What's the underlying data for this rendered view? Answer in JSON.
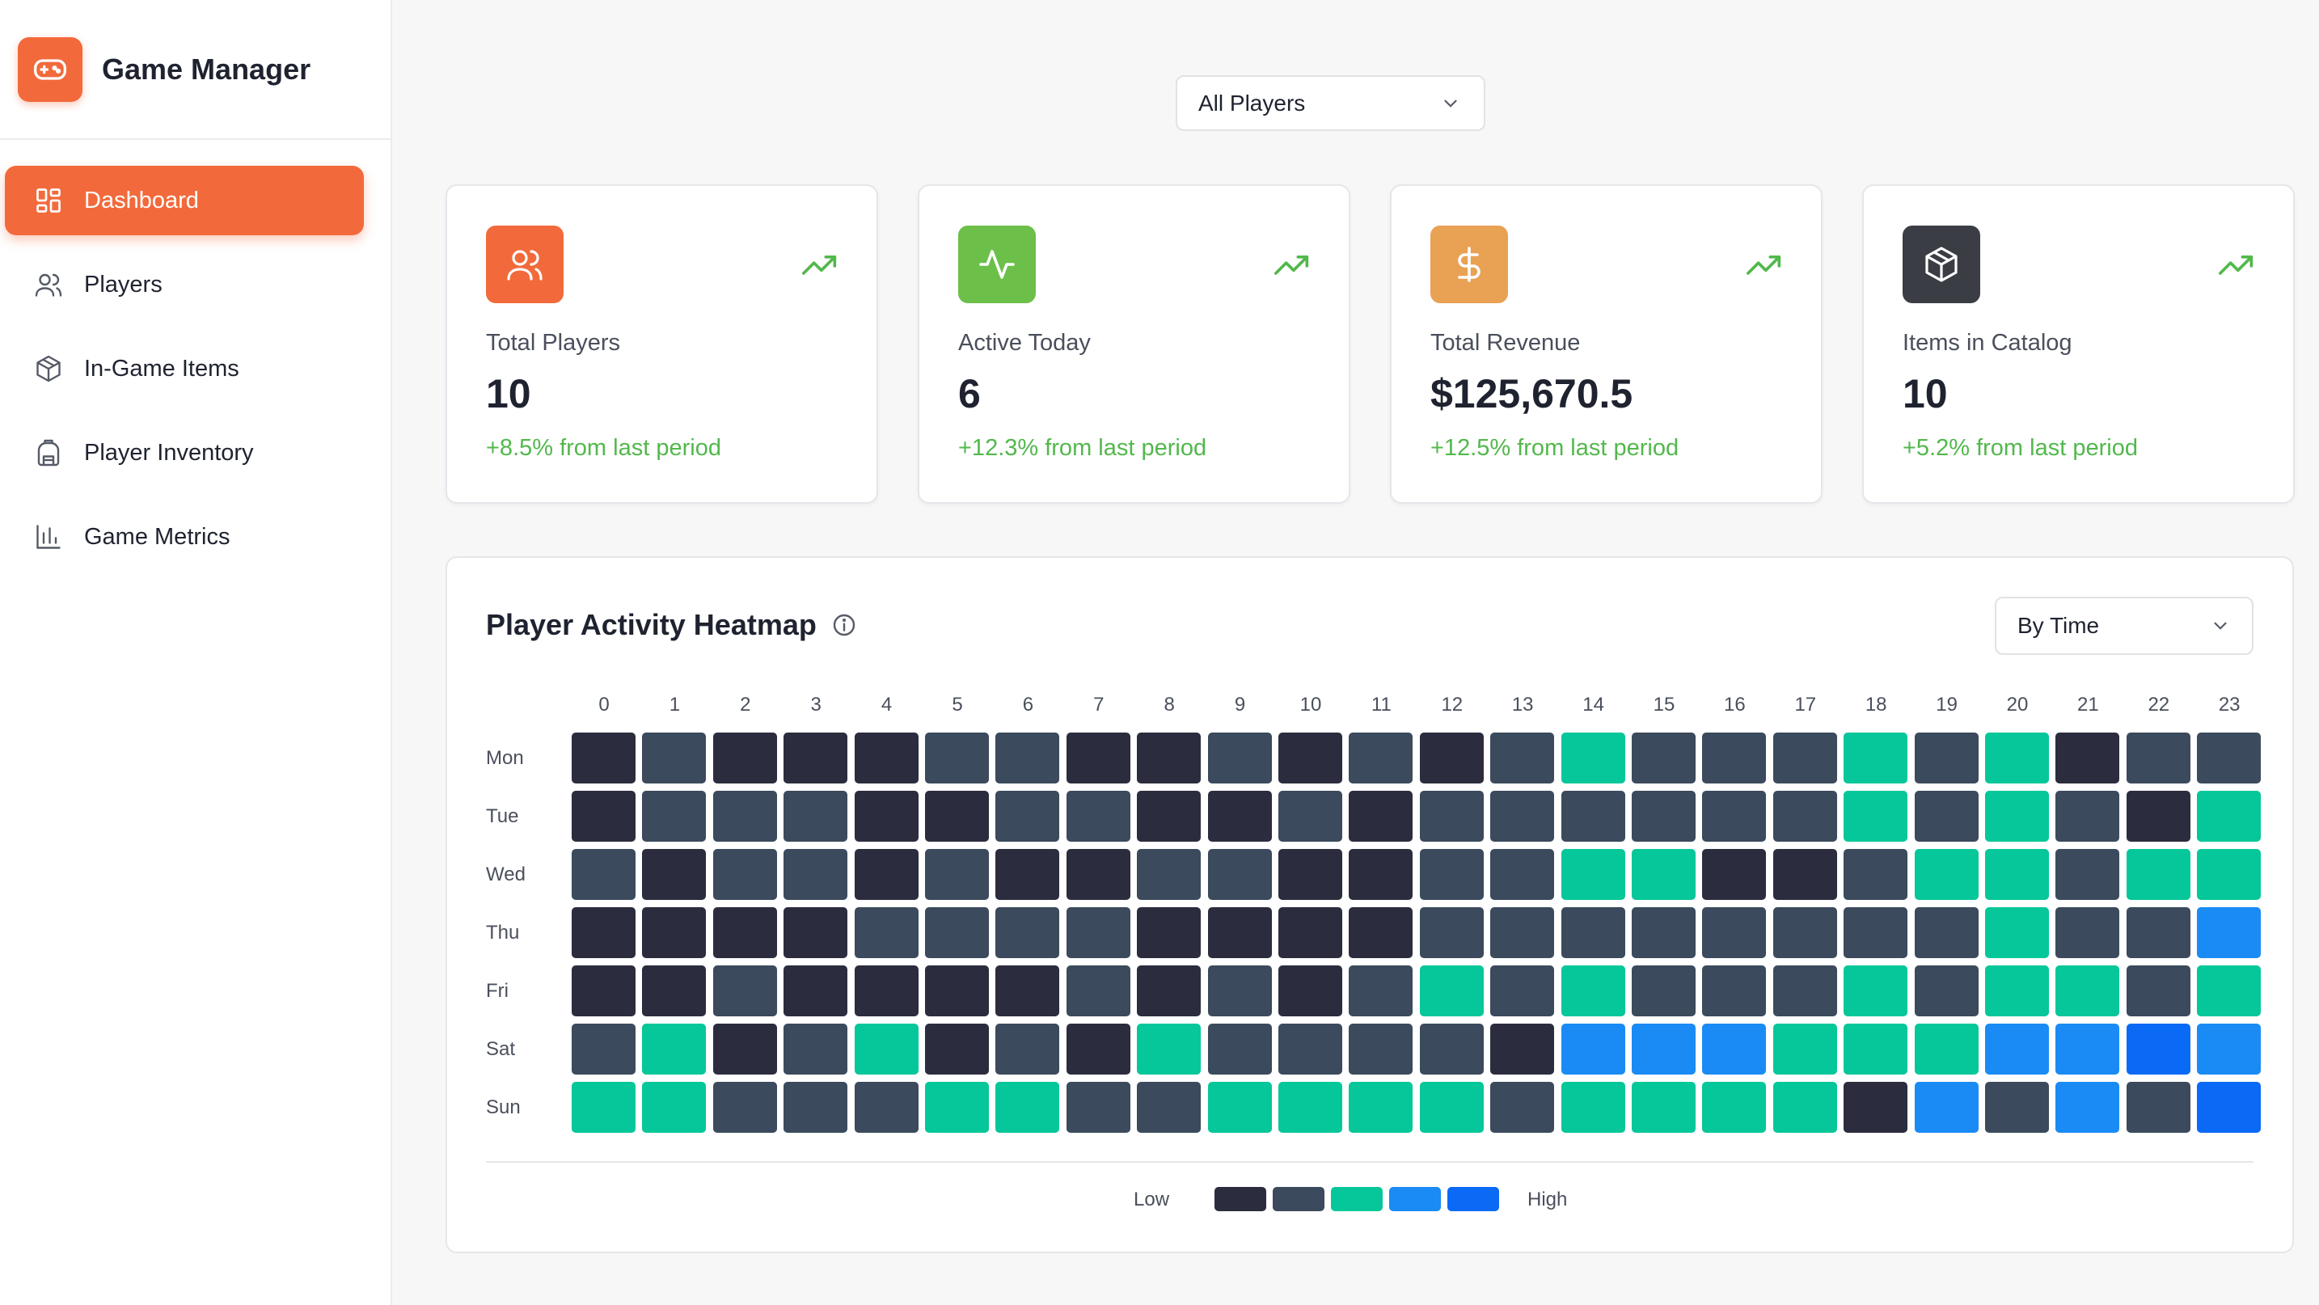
{
  "brand": {
    "title": "Game Manager",
    "icon": "gamepad-icon",
    "accent": "#f26a3b"
  },
  "nav": {
    "items": [
      {
        "label": "Dashboard",
        "icon": "dashboard-icon",
        "active": true
      },
      {
        "label": "Players",
        "icon": "users-icon",
        "active": false
      },
      {
        "label": "In-Game Items",
        "icon": "box-icon",
        "active": false
      },
      {
        "label": "Player Inventory",
        "icon": "backpack-icon",
        "active": false
      },
      {
        "label": "Game Metrics",
        "icon": "bar-chart-icon",
        "active": false
      }
    ]
  },
  "filter": {
    "players_selected": "All Players"
  },
  "stats": [
    {
      "label": "Total Players",
      "value": "10",
      "change": "+8.5% from last period",
      "icon": "users-icon",
      "color": "#f26a3b"
    },
    {
      "label": "Active Today",
      "value": "6",
      "change": "+12.3% from last period",
      "icon": "activity-icon",
      "color": "#6cc04a"
    },
    {
      "label": "Total Revenue",
      "value": "$125,670.5",
      "change": "+12.5% from last period",
      "icon": "dollar-icon",
      "color": "#e9a154"
    },
    {
      "label": "Items in Catalog",
      "value": "10",
      "change": "+5.2% from last period",
      "icon": "box-icon",
      "color": "#3a3d44"
    }
  ],
  "heatmap": {
    "title": "Player Activity Heatmap",
    "mode_selected": "By Time",
    "legend_low": "Low",
    "legend_high": "High"
  },
  "chart_data": {
    "type": "heatmap",
    "x": [
      "0",
      "1",
      "2",
      "3",
      "4",
      "5",
      "6",
      "7",
      "8",
      "9",
      "10",
      "11",
      "12",
      "13",
      "14",
      "15",
      "16",
      "17",
      "18",
      "19",
      "20",
      "21",
      "22",
      "23"
    ],
    "y": [
      "Mon",
      "Tue",
      "Wed",
      "Thu",
      "Fri",
      "Sat",
      "Sun"
    ],
    "levels": 5,
    "level_colors": [
      "#2b2d3e",
      "#3b4a5c",
      "#06c799",
      "#1a8bf5",
      "#0a6af5"
    ],
    "values": [
      [
        0,
        1,
        0,
        0,
        0,
        1,
        1,
        0,
        0,
        1,
        0,
        1,
        0,
        1,
        2,
        1,
        1,
        1,
        2,
        1,
        2,
        0,
        1,
        1
      ],
      [
        0,
        1,
        1,
        1,
        0,
        0,
        1,
        1,
        0,
        0,
        1,
        0,
        1,
        1,
        1,
        1,
        1,
        1,
        2,
        1,
        2,
        1,
        0,
        2
      ],
      [
        1,
        0,
        1,
        1,
        0,
        1,
        0,
        0,
        1,
        1,
        0,
        0,
        1,
        1,
        2,
        2,
        0,
        0,
        1,
        2,
        2,
        1,
        2,
        2
      ],
      [
        0,
        0,
        0,
        0,
        1,
        1,
        1,
        1,
        0,
        0,
        0,
        0,
        1,
        1,
        1,
        1,
        1,
        1,
        1,
        1,
        2,
        1,
        1,
        3
      ],
      [
        0,
        0,
        1,
        0,
        0,
        0,
        0,
        1,
        0,
        1,
        0,
        1,
        2,
        1,
        2,
        1,
        1,
        1,
        2,
        1,
        2,
        2,
        1,
        2
      ],
      [
        1,
        2,
        0,
        1,
        2,
        0,
        1,
        0,
        2,
        1,
        1,
        1,
        1,
        0,
        3,
        3,
        3,
        2,
        2,
        2,
        3,
        3,
        4,
        3
      ],
      [
        2,
        2,
        1,
        1,
        1,
        2,
        2,
        1,
        1,
        2,
        2,
        2,
        2,
        1,
        2,
        2,
        2,
        2,
        0,
        3,
        1,
        3,
        1,
        4
      ]
    ]
  }
}
